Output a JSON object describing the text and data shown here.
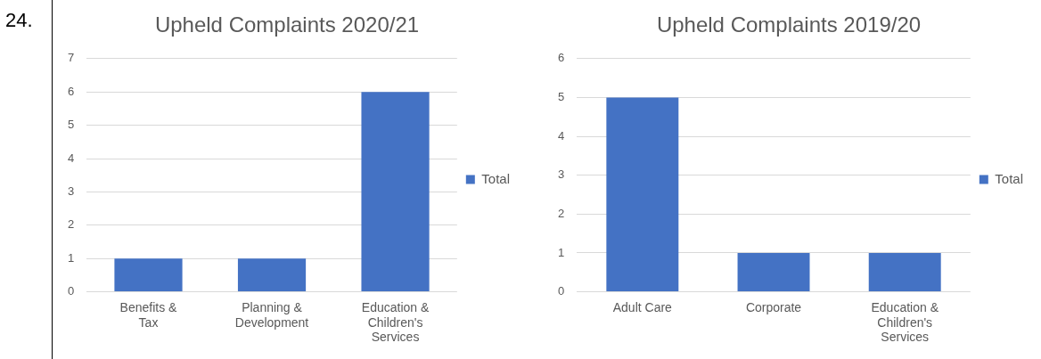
{
  "chart_data": [
    {
      "type": "bar",
      "title": "Upheld Complaints 2020/21",
      "categories": [
        "Benefits & Tax",
        "Planning & Development",
        "Education & Children's Services"
      ],
      "series": [
        {
          "name": "Total",
          "color": "#4472c4",
          "values": [
            1,
            1,
            6
          ]
        }
      ],
      "ylim": [
        0,
        7
      ],
      "yticks": [
        0,
        1,
        2,
        3,
        4,
        5,
        6,
        7
      ],
      "grid": "y",
      "legend": "right",
      "annotations": [
        "24."
      ]
    },
    {
      "type": "bar",
      "title": "Upheld Complaints 2019/20",
      "categories": [
        "Adult Care",
        "Corporate",
        "Education & Children's Services"
      ],
      "series": [
        {
          "name": "Total",
          "color": "#4472c4",
          "values": [
            5,
            1,
            1
          ]
        }
      ],
      "ylim": [
        0,
        6
      ],
      "yticks": [
        0,
        1,
        2,
        3,
        4,
        5,
        6
      ],
      "grid": "y",
      "legend": "right"
    }
  ]
}
